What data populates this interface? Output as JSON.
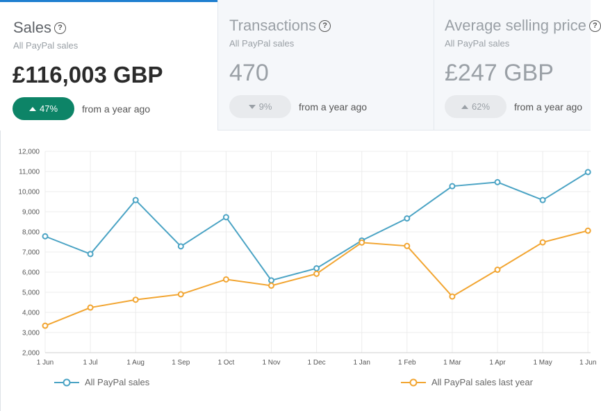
{
  "cards": [
    {
      "title": "Sales",
      "subtitle": "All PayPal sales",
      "value": "£116,003 GBP",
      "change": "47%",
      "direction": "up",
      "comparison": "from a year ago"
    },
    {
      "title": "Transactions",
      "subtitle": "All PayPal sales",
      "value": "470",
      "change": "9%",
      "direction": "down",
      "comparison": "from a year ago"
    },
    {
      "title": "Average selling price",
      "subtitle": "All PayPal sales",
      "value": "£247 GBP",
      "change": "62%",
      "direction": "up",
      "comparison": "from a year ago"
    }
  ],
  "help_glyph": "?",
  "colors": {
    "series1": "#4aa3c4",
    "series2": "#f2a531",
    "accent": "#0d8467",
    "tab_top": "#1f7fd0"
  },
  "chart_data": {
    "type": "line",
    "x": [
      "1 Jun",
      "1 Jul",
      "1 Aug",
      "1 Sep",
      "1 Oct",
      "1 Nov",
      "1 Dec",
      "1 Jan",
      "1 Feb",
      "1 Mar",
      "1 Apr",
      "1 May",
      "1 Jun"
    ],
    "ylim": [
      2000,
      12000
    ],
    "yticks": [
      "2,000",
      "3,000",
      "4,000",
      "5,000",
      "6,000",
      "7,000",
      "8,000",
      "9,000",
      "10,000",
      "11,000",
      "12,000"
    ],
    "series": [
      {
        "name": "All PayPal sales",
        "values": [
          7780,
          6900,
          9580,
          7280,
          8730,
          5590,
          6190,
          7570,
          8670,
          10270,
          10470,
          9580,
          10970
        ]
      },
      {
        "name": "All PayPal sales last year",
        "values": [
          3340,
          4240,
          4630,
          4900,
          5640,
          5330,
          5920,
          7470,
          7300,
          4790,
          6120,
          7480,
          8060
        ]
      }
    ],
    "grid": true,
    "legend_position": "bottom"
  }
}
